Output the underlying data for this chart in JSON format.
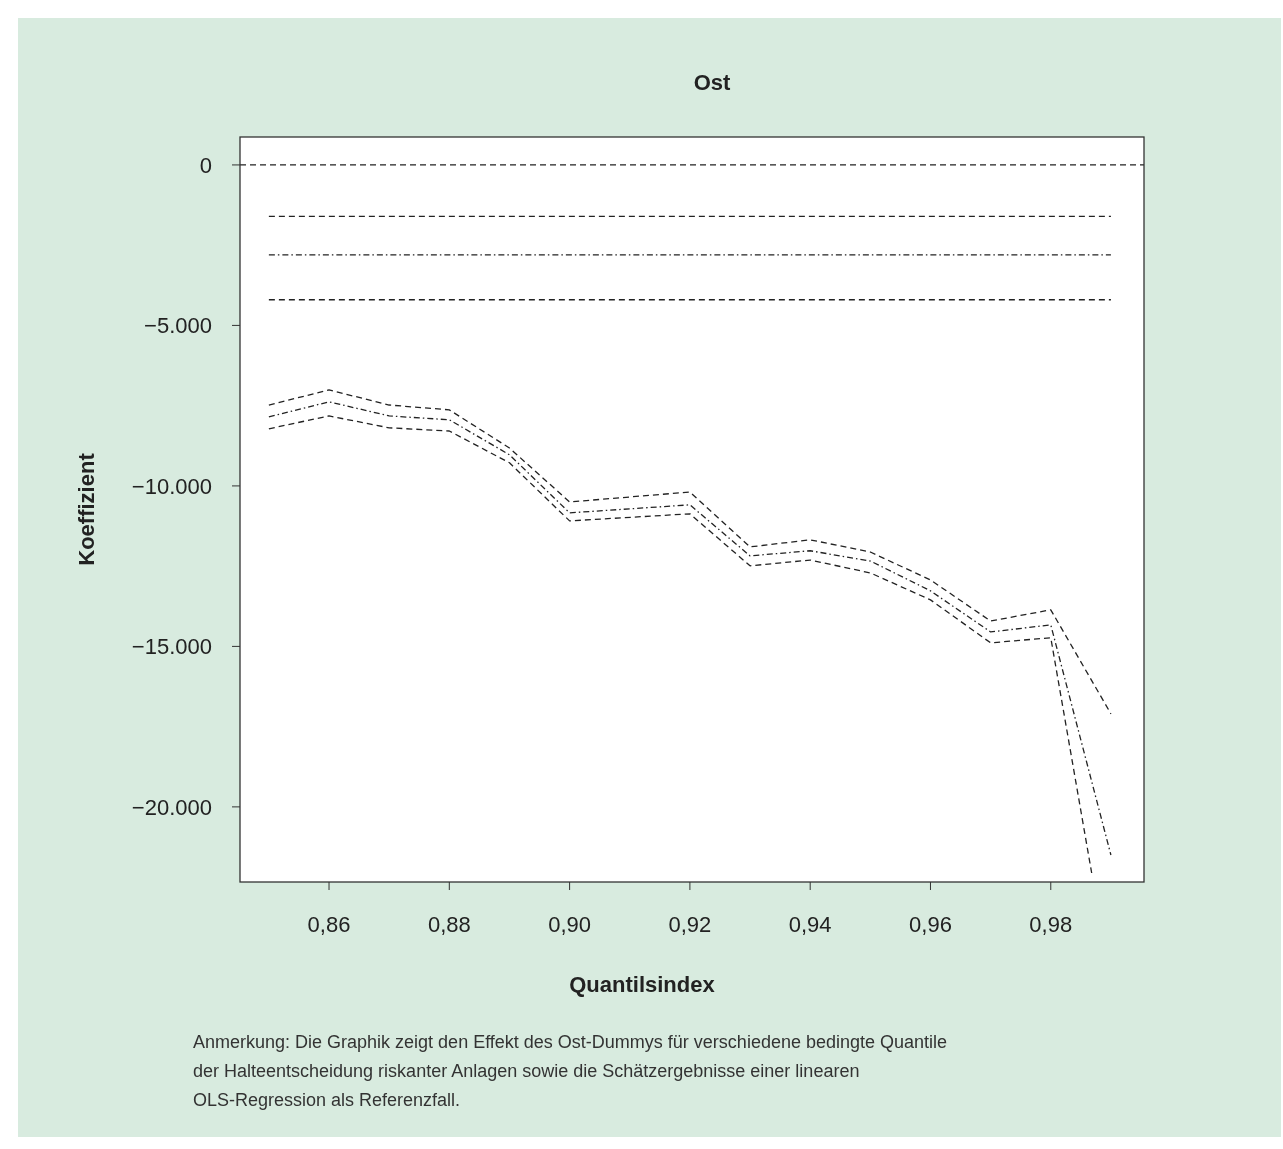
{
  "chart_data": {
    "type": "line",
    "title": "Ost",
    "xlabel": "Quantilsindex",
    "ylabel": "Koeffizient",
    "annotations": [
      "Anmerkung: Die Graphik zeigt den Effekt des Ost-Dummys für verschiedene bedingte Quantile der Halteentscheidung riskanter Anlagen sowie die Schätzergebnisse einer linearen OLS-Regression als Referenzfall."
    ],
    "x": [
      0.85,
      0.86,
      0.87,
      0.88,
      0.89,
      0.9,
      0.92,
      0.93,
      0.94,
      0.95,
      0.96,
      0.97,
      0.98,
      0.99
    ],
    "series": [
      {
        "color": "#222222",
        "line_style": "dashed",
        "values": [
          -7480,
          -7010,
          -7480,
          -7630,
          -8820,
          -10500,
          -10190,
          -11900,
          -11680,
          -12060,
          -12930,
          -14210,
          -13860,
          -17100
        ]
      },
      {
        "color": "#222222",
        "line_style": "dotted",
        "values": [
          -7850,
          -7380,
          -7820,
          -7940,
          -9030,
          -10840,
          -10590,
          -12180,
          -12020,
          -12340,
          -13270,
          -14550,
          -14330,
          -21500
        ]
      },
      {
        "color": "#222222",
        "line_style": "dashed",
        "x": [
          0.85,
          0.86,
          0.87,
          0.88,
          0.89,
          0.9,
          0.92,
          0.93,
          0.94,
          0.95,
          0.96,
          0.97,
          0.98,
          0.9868
        ],
        "values": [
          -8220,
          -7820,
          -8190,
          -8290,
          -9280,
          -11090,
          -10870,
          -12490,
          -12310,
          -12710,
          -13550,
          -14890,
          -14730,
          -22060
        ]
      },
      {
        "color": "#222222",
        "line_style": "dashed",
        "x": [
          0.85,
          0.99
        ],
        "values": [
          -1600,
          -1600
        ]
      },
      {
        "color": "#222222",
        "line_style": "dotted",
        "x": [
          0.85,
          0.99
        ],
        "values": [
          -2800,
          -2800
        ]
      },
      {
        "color": "#222222",
        "line_style": "dashed",
        "x": [
          0.85,
          0.99
        ],
        "values": [
          -4200,
          -4200
        ]
      }
    ],
    "ref_lines": [
      {
        "axis": "y",
        "value": 0,
        "color": "#222222",
        "line_style": "dashed"
      }
    ],
    "xlim": [
      0.8452,
      0.9955
    ],
    "ylim": [
      -22340,
      870
    ],
    "xticks": [
      {
        "value": 0.86,
        "label": "0,86"
      },
      {
        "value": 0.88,
        "label": "0,88"
      },
      {
        "value": 0.9,
        "label": "0,90"
      },
      {
        "value": 0.92,
        "label": "0,92"
      },
      {
        "value": 0.94,
        "label": "0,94"
      },
      {
        "value": 0.96,
        "label": "0,96"
      },
      {
        "value": 0.98,
        "label": "0,98"
      }
    ],
    "yticks": [
      {
        "value": 0,
        "label": "0"
      },
      {
        "value": -5000,
        "label": "−5.000"
      },
      {
        "value": -10000,
        "label": "−10.000"
      },
      {
        "value": -15000,
        "label": "−15.000"
      },
      {
        "value": -20000,
        "label": "−20.000"
      }
    ],
    "grid": false
  }
}
